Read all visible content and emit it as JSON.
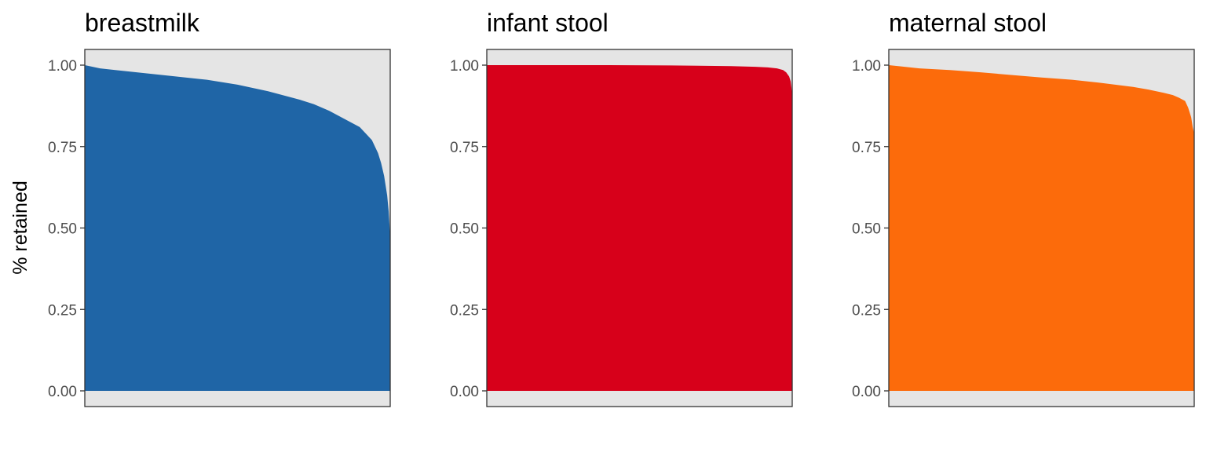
{
  "chart_data": {
    "type": "area",
    "ylabel": "% retained",
    "ylim": [
      0,
      1.05
    ],
    "y_ticks": [
      0,
      0.25,
      0.5,
      0.75,
      1.0
    ],
    "y_tick_labels": [
      "0.00",
      "0.25",
      "0.50",
      "0.75",
      "1.00"
    ],
    "panel_background": "#e5e5e5",
    "panels": [
      {
        "title": "breastmilk",
        "color": "#1f65a6",
        "series": {
          "x": [
            0,
            0.05,
            0.1,
            0.2,
            0.3,
            0.4,
            0.5,
            0.6,
            0.7,
            0.75,
            0.8,
            0.85,
            0.9,
            0.92,
            0.94,
            0.96,
            0.97,
            0.98,
            0.99,
            0.995,
            1.0
          ],
          "values": [
            1.0,
            0.99,
            0.985,
            0.975,
            0.965,
            0.955,
            0.94,
            0.92,
            0.895,
            0.88,
            0.86,
            0.835,
            0.81,
            0.79,
            0.77,
            0.73,
            0.7,
            0.66,
            0.6,
            0.55,
            0.47
          ]
        }
      },
      {
        "title": "infant stool",
        "color": "#d7001a",
        "series": {
          "x": [
            0,
            0.2,
            0.4,
            0.6,
            0.8,
            0.88,
            0.92,
            0.95,
            0.97,
            0.98,
            0.99,
            0.995,
            1.0
          ],
          "values": [
            1.0,
            1.0,
            1.0,
            0.999,
            0.997,
            0.995,
            0.993,
            0.99,
            0.985,
            0.978,
            0.965,
            0.95,
            0.91
          ]
        }
      },
      {
        "title": "maternal stool",
        "color": "#fc6b0b",
        "series": {
          "x": [
            0,
            0.1,
            0.2,
            0.3,
            0.4,
            0.5,
            0.6,
            0.7,
            0.8,
            0.85,
            0.9,
            0.93,
            0.95,
            0.97,
            0.98,
            0.99,
            0.995,
            1.0
          ],
          "values": [
            1.0,
            0.99,
            0.985,
            0.978,
            0.97,
            0.962,
            0.955,
            0.945,
            0.933,
            0.925,
            0.915,
            0.908,
            0.9,
            0.89,
            0.87,
            0.84,
            0.81,
            0.79
          ]
        }
      }
    ]
  }
}
